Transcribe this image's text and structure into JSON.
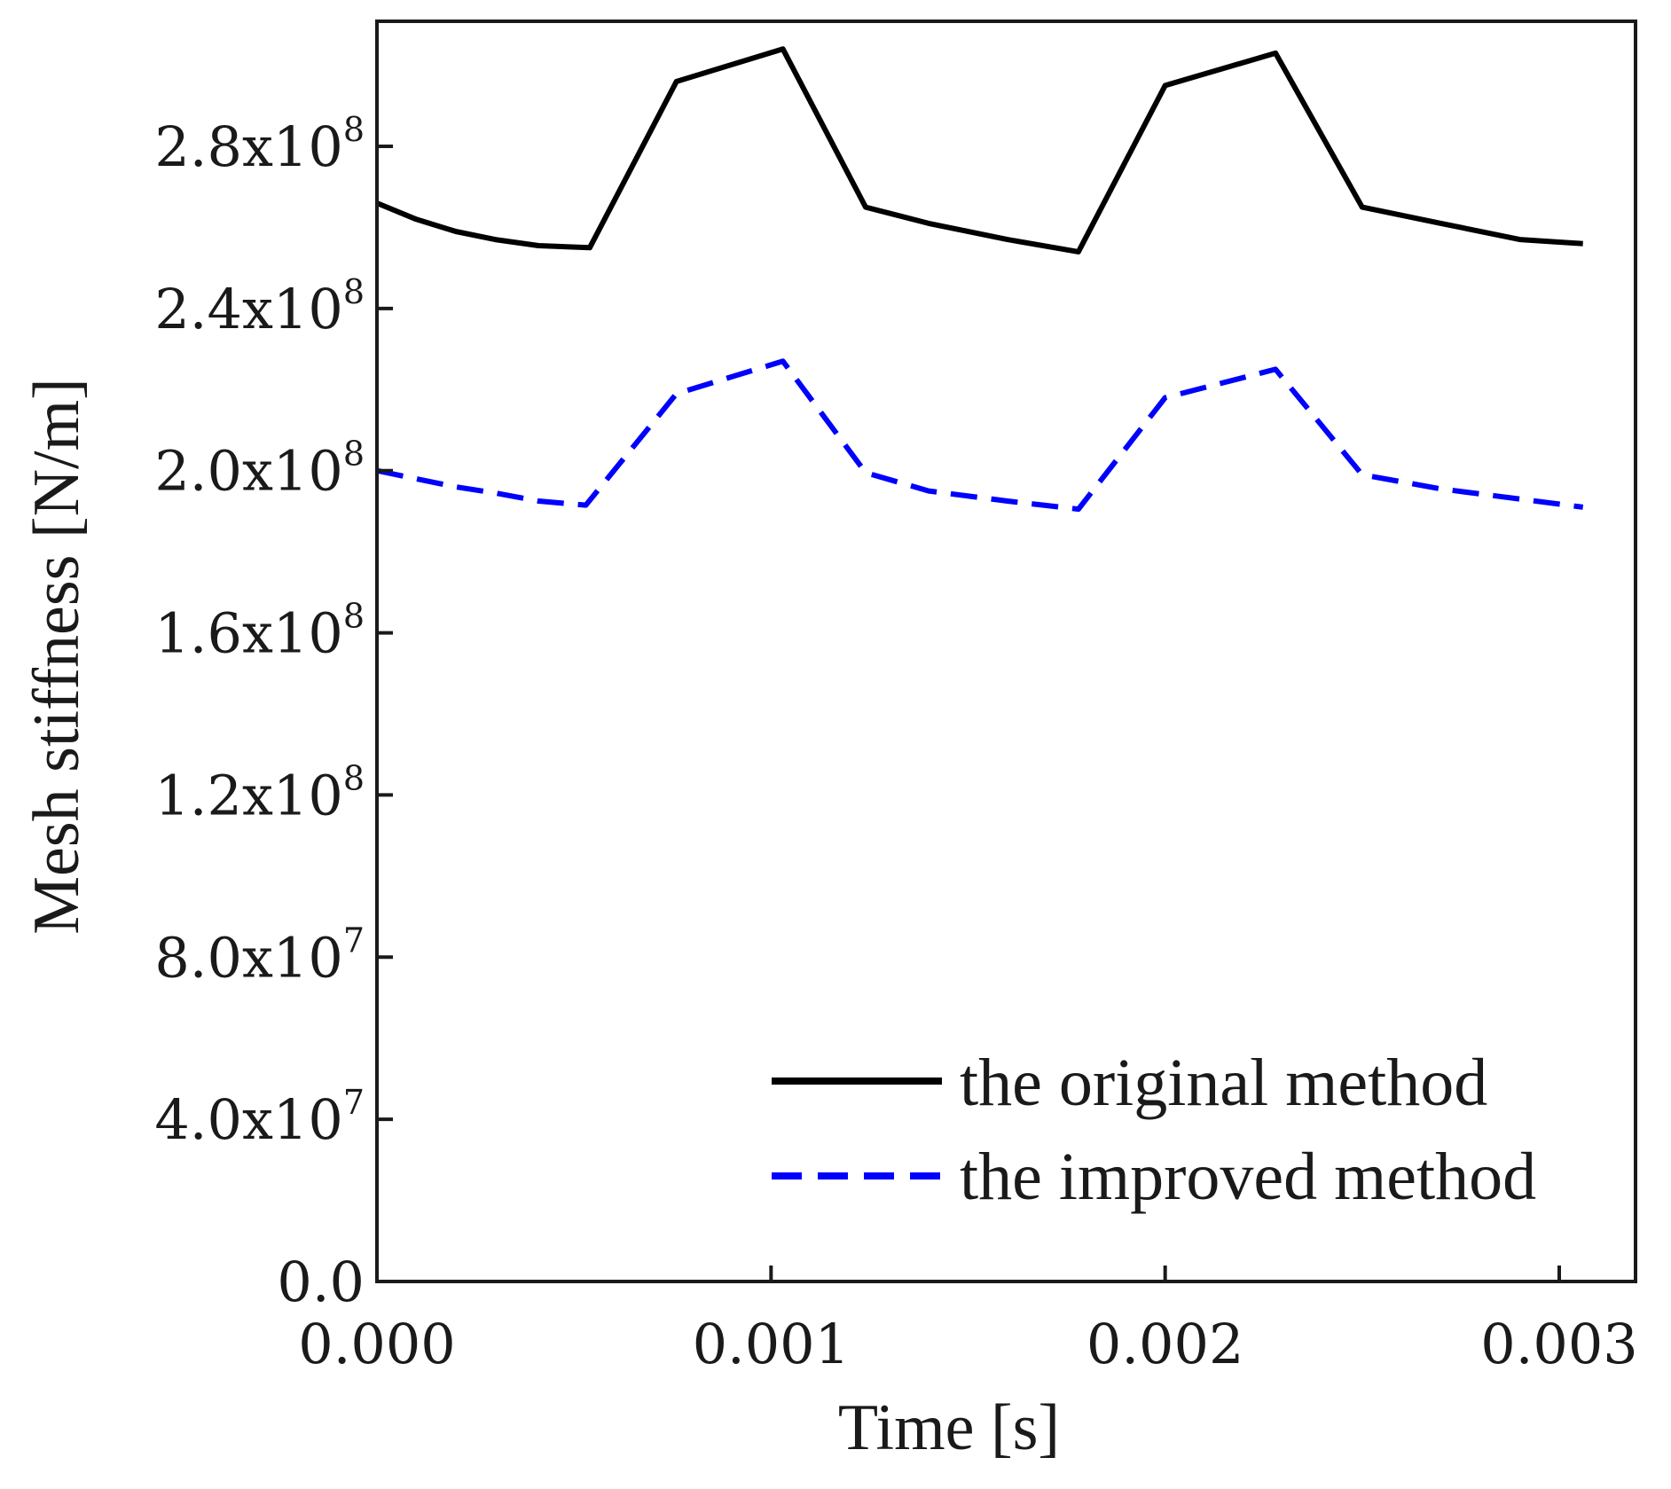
{
  "chart_data": {
    "type": "line",
    "title": "",
    "xlabel": "Time [s]",
    "ylabel": "Mesh stiffness [N/m]",
    "xlim": [
      0,
      0.0032
    ],
    "ylim": [
      0,
      315000000.0
    ],
    "grid": false,
    "legend_position": "bottom-right",
    "x_ticks": [
      {
        "value": 0.0,
        "label": "0.000"
      },
      {
        "value": 0.001,
        "label": "0.001"
      },
      {
        "value": 0.002,
        "label": "0.002"
      },
      {
        "value": 0.003,
        "label": "0.003"
      }
    ],
    "y_ticks": [
      {
        "value": 0,
        "mantissa": "0.0",
        "exponent": ""
      },
      {
        "value": 40000000.0,
        "mantissa": "4.0x10",
        "exponent": "7"
      },
      {
        "value": 80000000.0,
        "mantissa": "8.0x10",
        "exponent": "7"
      },
      {
        "value": 120000000.0,
        "mantissa": "1.2x10",
        "exponent": "8"
      },
      {
        "value": 160000000.0,
        "mantissa": "1.6x10",
        "exponent": "8"
      },
      {
        "value": 200000000.0,
        "mantissa": "2.0x10",
        "exponent": "8"
      },
      {
        "value": 240000000.0,
        "mantissa": "2.4x10",
        "exponent": "8"
      },
      {
        "value": 280000000.0,
        "mantissa": "2.8x10",
        "exponent": "8"
      }
    ],
    "series": [
      {
        "name": "the original method",
        "color": "#000000",
        "dash": "solid",
        "x": [
          0.0,
          0.0001,
          0.0002,
          0.0003,
          0.00041,
          0.00054,
          0.00076,
          0.00103,
          0.00124,
          0.0014,
          0.0016,
          0.00178,
          0.002,
          0.00228,
          0.0025,
          0.0027,
          0.0029,
          0.00306
        ],
        "y": [
          266000000.0,
          262000000.0,
          259000000.0,
          257000000.0,
          255500000.0,
          255000000.0,
          296000000.0,
          304000000.0,
          265000000.0,
          261000000.0,
          257000000.0,
          254000000.0,
          295000000.0,
          303000000.0,
          265000000.0,
          261000000.0,
          257000000.0,
          256000000.0
        ]
      },
      {
        "name": "the improved method",
        "color": "#0000ff",
        "dash": "dashed",
        "x": [
          0.0,
          0.0001,
          0.0002,
          0.0003,
          0.00041,
          0.00053,
          0.00076,
          0.00103,
          0.00124,
          0.0014,
          0.0016,
          0.00178,
          0.002,
          0.00228,
          0.0025,
          0.0027,
          0.0029,
          0.00306
        ],
        "y": [
          200000000.0,
          198000000.0,
          196000000.0,
          194500000.0,
          192500000.0,
          191500000.0,
          219000000.0,
          227000000.0,
          199500000.0,
          195000000.0,
          192500000.0,
          190500000.0,
          218000000.0,
          225000000.0,
          199000000.0,
          195500000.0,
          193000000.0,
          191000000.0
        ]
      }
    ]
  }
}
